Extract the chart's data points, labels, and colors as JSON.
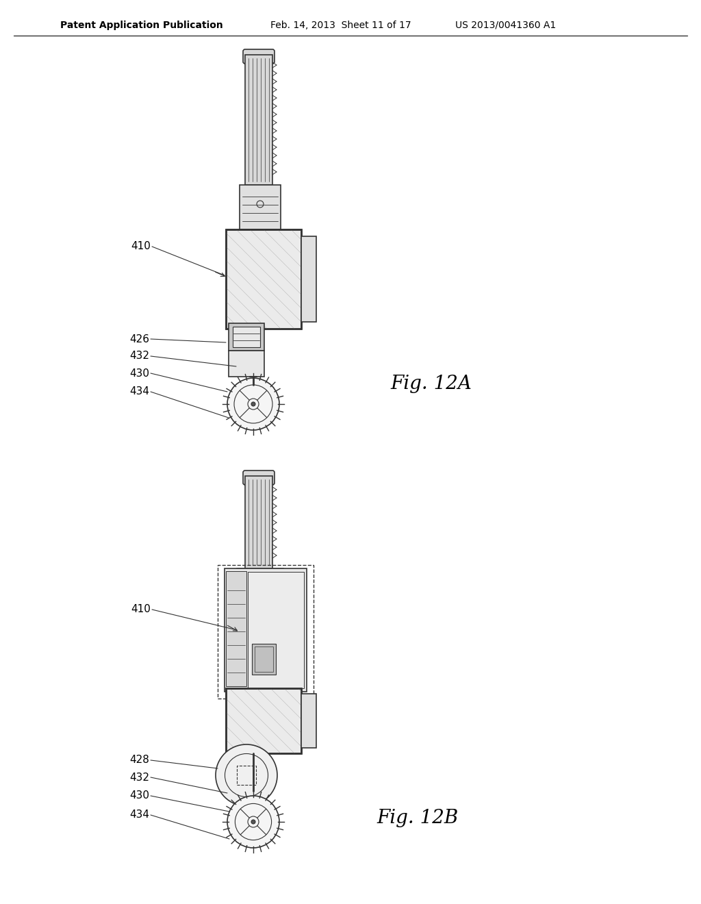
{
  "bg_color": "#ffffff",
  "header_left": "Patent Application Publication",
  "header_mid": "Feb. 14, 2013  Sheet 11 of 17",
  "header_right": "US 2013/0041360 A1",
  "fig_label_A": "Fig. 12A",
  "fig_label_B": "Fig. 12B",
  "line_color": "#333333",
  "text_color": "#000000",
  "label_fontsize": 11,
  "header_fontsize": 10,
  "fig_label_fontsize": 20
}
